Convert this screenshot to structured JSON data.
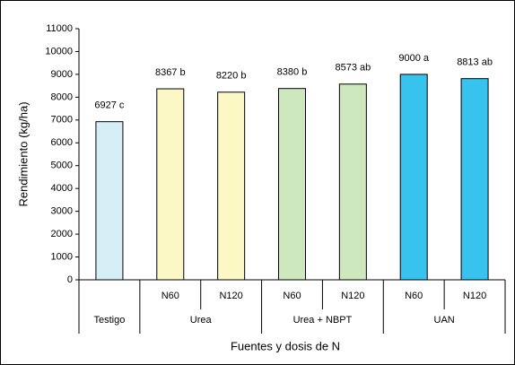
{
  "chart_data": {
    "type": "bar",
    "y_label": "Rendimiento (kg/ha)",
    "x_label": "Fuentes y dosis de N",
    "category_groups": [
      {
        "name": "Testigo",
        "categories": [
          null
        ]
      },
      {
        "name": "Urea",
        "categories": [
          "N60",
          "N120"
        ]
      },
      {
        "name": "Urea + NBPT",
        "categories": [
          "N60",
          "N120"
        ]
      },
      {
        "name": "UAN",
        "categories": [
          "N60",
          "N120"
        ]
      }
    ],
    "values": [
      6927,
      8367,
      8220,
      8380,
      8573,
      9000,
      8813
    ],
    "value_labels": [
      "6927 c",
      "8367 b",
      "8220 b",
      "8380 b",
      "8573 ab",
      "9000 a",
      "8813 ab"
    ],
    "colors": [
      "#d5eef5",
      "#fcf8c6",
      "#fcf8c6",
      "#cde8be",
      "#cde8be",
      "#38c3ef",
      "#38c3ef"
    ],
    "ylim": [
      0,
      11000
    ],
    "yticks": [
      0,
      1000,
      2000,
      3000,
      4000,
      5000,
      6000,
      7000,
      8000,
      9000,
      10000,
      11000
    ]
  }
}
